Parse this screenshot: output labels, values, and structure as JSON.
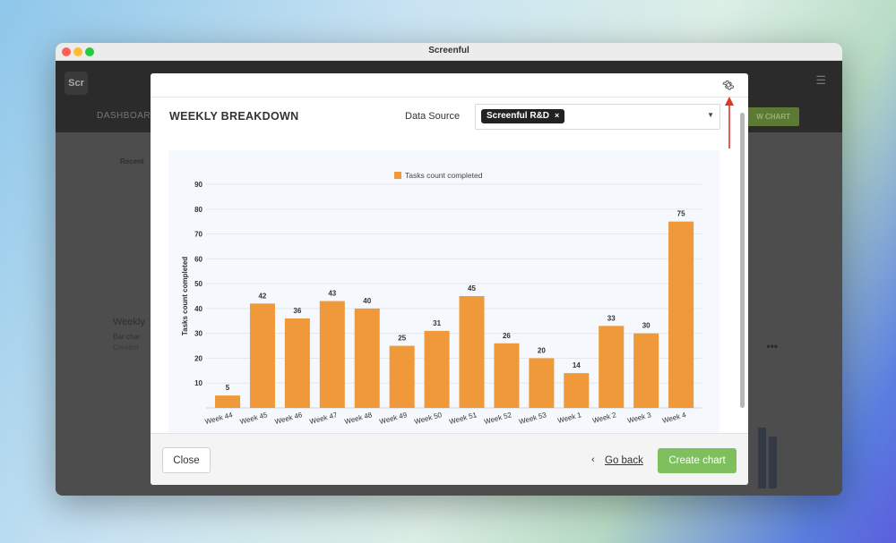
{
  "window": {
    "title": "Screenful"
  },
  "app": {
    "logo": "Scr",
    "menu_icon": "hamburger-icon",
    "nav_label": "DASHBOARD",
    "new_chart_label": "W CHART",
    "recent_label": "Recent",
    "card_title": "Weekly",
    "card_type": "Bar char",
    "card_created": "Created"
  },
  "modal": {
    "settings_icon": "gear-icon",
    "heading": "WEEKLY BREAKDOWN",
    "data_source_label": "Data Source",
    "data_source_chip": "Screenful R&D",
    "data_source_chip_remove": "×",
    "close_label": "Close",
    "go_back_label": "Go back",
    "create_label": "Create chart"
  },
  "colors": {
    "bar": "#f0993a",
    "create_button": "#7fbf5e",
    "annotation_arrow": "#e0352b"
  },
  "chart_data": {
    "type": "bar",
    "categories": [
      "Week 44",
      "Week 45",
      "Week 46",
      "Week 47",
      "Week 48",
      "Week 49",
      "Week 50",
      "Week 51",
      "Week 52",
      "Week 53",
      "Week 1",
      "Week 2",
      "Week 3",
      "Week 4"
    ],
    "series": [
      {
        "name": "Tasks count completed",
        "values": [
          5,
          42,
          36,
          43,
          40,
          25,
          31,
          45,
          26,
          20,
          14,
          33,
          30,
          75
        ]
      }
    ],
    "ylabel": "Tasks count completed",
    "xlabel": "",
    "ylim": [
      0,
      90
    ],
    "yticks": [
      10,
      20,
      30,
      40,
      50,
      60,
      70,
      80,
      90
    ],
    "grid": true,
    "legend": "top-center",
    "data_labels": true
  }
}
